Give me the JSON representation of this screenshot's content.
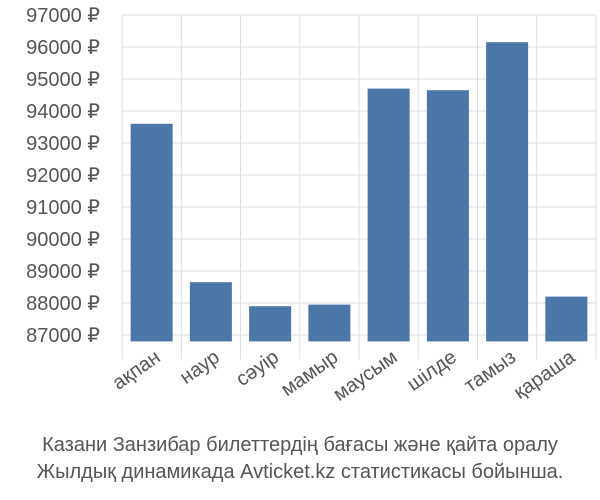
{
  "chart_data": {
    "type": "bar",
    "categories": [
      "ақпан",
      "наур",
      "сәуір",
      "мамыр",
      "маусым",
      "шілде",
      "тамыз",
      "қараша"
    ],
    "values": [
      93600,
      88650,
      87900,
      87950,
      94700,
      94650,
      96150,
      88200
    ],
    "yticks": [
      "87000 ₽",
      "88000 ₽",
      "89000 ₽",
      "90000 ₽",
      "91000 ₽",
      "92000 ₽",
      "93000 ₽",
      "94000 ₽",
      "95000 ₽",
      "96000 ₽",
      "97000 ₽"
    ],
    "ylim": [
      86800,
      97000
    ],
    "grid": true,
    "colors": {
      "bar": "#4a76a8",
      "grid": "#dddddd",
      "axis": "#aaaaaa"
    }
  },
  "caption": {
    "line1": "Казани Занзибар билеттердің бағасы және қайта оралу",
    "line2": "Жылдық динамикада Avticket.kz статистикасы бойынша."
  }
}
